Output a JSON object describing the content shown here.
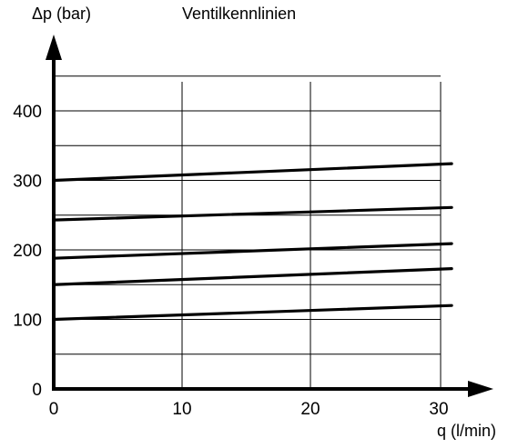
{
  "chart_data": {
    "type": "line",
    "title": "Ventilkennlinien",
    "ylabel": "Δp (bar)",
    "xlabel": "q (l/min)",
    "xlim": [
      0,
      31
    ],
    "ylim": [
      0,
      450
    ],
    "x_ticks": [
      "0",
      "10",
      "20",
      "30"
    ],
    "y_ticks": [
      "0",
      "100",
      "200",
      "300",
      "400"
    ],
    "grid": true,
    "series": [
      {
        "x": [
          0,
          31
        ],
        "values": [
          100,
          120
        ]
      },
      {
        "x": [
          0,
          31
        ],
        "values": [
          150,
          173
        ]
      },
      {
        "x": [
          0,
          31
        ],
        "values": [
          188,
          209
        ]
      },
      {
        "x": [
          0,
          31
        ],
        "values": [
          243,
          261
        ]
      },
      {
        "x": [
          0,
          31
        ],
        "values": [
          300,
          324
        ]
      }
    ]
  }
}
